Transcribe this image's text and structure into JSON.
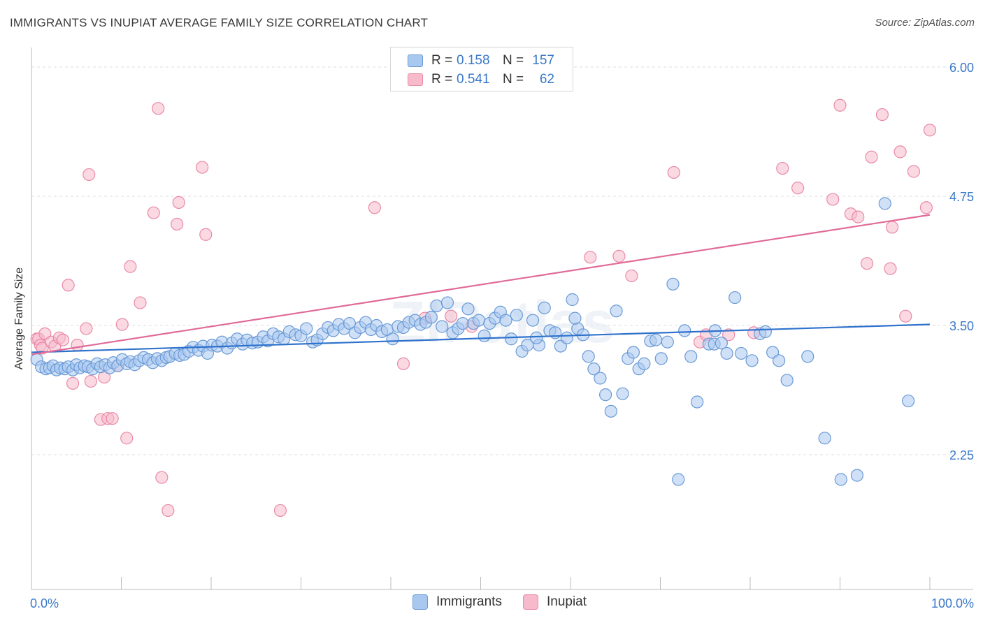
{
  "title": "IMMIGRANTS VS INUPIAT AVERAGE FAMILY SIZE CORRELATION CHART",
  "source": "Source: ZipAtlas.com",
  "colors": {
    "blue_fill": "#a9c8f0",
    "blue_stroke": "#6a9ad6",
    "blue_line": "#2f72cc",
    "pink_fill": "#f7b9cc",
    "pink_stroke": "#e98aa7",
    "pink_line": "#e06a97",
    "axis_text": "#3a78c9",
    "grid": "#dcdcdc"
  },
  "legend": {
    "row1": {
      "r_label": "R =",
      "r_value": "0.158",
      "n_label": "N =",
      "n_value": "157"
    },
    "row2": {
      "r_label": "R =",
      "r_value": "0.541",
      "n_label": "N =",
      "n_value": "62"
    }
  },
  "watermark": "ZIPatlas",
  "chart_data": {
    "type": "scatter",
    "ylabel": "Average Family Size",
    "xlabel": "",
    "x_tick_labels": [
      "0.0%",
      "100.0%"
    ],
    "y_tick_labels": [
      "6.00",
      "4.75",
      "3.50",
      "2.25"
    ],
    "y_ticks": [
      6.0,
      4.75,
      3.5,
      2.25
    ],
    "xlim": [
      0,
      100
    ],
    "ylim": [
      1.25,
      6.1
    ],
    "grid": true,
    "legend_position": "top-center",
    "series": [
      {
        "name": "Immigrants",
        "color": "#a9c8f0",
        "trend": {
          "x": [
            0,
            100
          ],
          "y": [
            3.24,
            3.51
          ]
        },
        "points": [
          [
            0.6,
            3.17
          ],
          [
            1.1,
            3.1
          ],
          [
            1.6,
            3.08
          ],
          [
            2.0,
            3.09
          ],
          [
            2.4,
            3.11
          ],
          [
            2.8,
            3.07
          ],
          [
            3.2,
            3.09
          ],
          [
            3.7,
            3.08
          ],
          [
            4.1,
            3.1
          ],
          [
            4.6,
            3.07
          ],
          [
            5.0,
            3.12
          ],
          [
            5.4,
            3.09
          ],
          [
            5.9,
            3.11
          ],
          [
            6.3,
            3.1
          ],
          [
            6.8,
            3.08
          ],
          [
            7.3,
            3.13
          ],
          [
            7.7,
            3.1
          ],
          [
            8.2,
            3.12
          ],
          [
            8.7,
            3.09
          ],
          [
            9.1,
            3.14
          ],
          [
            9.6,
            3.11
          ],
          [
            10.1,
            3.17
          ],
          [
            10.6,
            3.13
          ],
          [
            11.0,
            3.15
          ],
          [
            11.5,
            3.12
          ],
          [
            12.0,
            3.16
          ],
          [
            12.5,
            3.19
          ],
          [
            13.0,
            3.17
          ],
          [
            13.5,
            3.14
          ],
          [
            14.0,
            3.18
          ],
          [
            14.5,
            3.16
          ],
          [
            15.0,
            3.19
          ],
          [
            15.4,
            3.2
          ],
          [
            16.0,
            3.23
          ],
          [
            16.5,
            3.21
          ],
          [
            17.0,
            3.22
          ],
          [
            17.5,
            3.25
          ],
          [
            18.0,
            3.29
          ],
          [
            18.6,
            3.26
          ],
          [
            19.1,
            3.3
          ],
          [
            19.6,
            3.23
          ],
          [
            20.1,
            3.31
          ],
          [
            20.7,
            3.3
          ],
          [
            21.2,
            3.34
          ],
          [
            21.8,
            3.28
          ],
          [
            22.3,
            3.33
          ],
          [
            22.9,
            3.37
          ],
          [
            23.5,
            3.32
          ],
          [
            24.0,
            3.36
          ],
          [
            24.6,
            3.33
          ],
          [
            25.2,
            3.34
          ],
          [
            25.8,
            3.39
          ],
          [
            26.3,
            3.35
          ],
          [
            26.9,
            3.42
          ],
          [
            27.5,
            3.39
          ],
          [
            28.1,
            3.37
          ],
          [
            28.7,
            3.44
          ],
          [
            29.4,
            3.41
          ],
          [
            30.0,
            3.4
          ],
          [
            30.6,
            3.47
          ],
          [
            31.3,
            3.34
          ],
          [
            31.8,
            3.36
          ],
          [
            32.4,
            3.42
          ],
          [
            33.0,
            3.48
          ],
          [
            33.6,
            3.45
          ],
          [
            34.2,
            3.51
          ],
          [
            34.8,
            3.47
          ],
          [
            35.4,
            3.52
          ],
          [
            36.0,
            3.43
          ],
          [
            36.6,
            3.48
          ],
          [
            37.2,
            3.53
          ],
          [
            37.8,
            3.46
          ],
          [
            38.4,
            3.5
          ],
          [
            39.0,
            3.44
          ],
          [
            39.6,
            3.46
          ],
          [
            40.2,
            3.37
          ],
          [
            40.8,
            3.49
          ],
          [
            41.4,
            3.48
          ],
          [
            42.0,
            3.53
          ],
          [
            42.7,
            3.55
          ],
          [
            43.3,
            3.51
          ],
          [
            43.9,
            3.53
          ],
          [
            44.5,
            3.58
          ],
          [
            45.1,
            3.69
          ],
          [
            45.7,
            3.49
          ],
          [
            46.3,
            3.72
          ],
          [
            46.9,
            3.43
          ],
          [
            47.5,
            3.47
          ],
          [
            48.0,
            3.52
          ],
          [
            48.6,
            3.66
          ],
          [
            49.2,
            3.52
          ],
          [
            49.8,
            3.55
          ],
          [
            50.4,
            3.4
          ],
          [
            51.0,
            3.52
          ],
          [
            51.6,
            3.57
          ],
          [
            52.2,
            3.63
          ],
          [
            52.8,
            3.55
          ],
          [
            53.4,
            3.37
          ],
          [
            54.0,
            3.6
          ],
          [
            54.6,
            3.25
          ],
          [
            55.2,
            3.31
          ],
          [
            55.8,
            3.55
          ],
          [
            56.5,
            3.31
          ],
          [
            57.1,
            3.67
          ],
          [
            57.7,
            3.45
          ],
          [
            58.3,
            3.43
          ],
          [
            58.9,
            3.3
          ],
          [
            59.6,
            3.38
          ],
          [
            60.2,
            3.75
          ],
          [
            60.8,
            3.47
          ],
          [
            61.4,
            3.41
          ],
          [
            62.0,
            3.2
          ],
          [
            62.6,
            3.08
          ],
          [
            63.3,
            2.99
          ],
          [
            63.9,
            2.83
          ],
          [
            64.5,
            2.67
          ],
          [
            65.1,
            3.64
          ],
          [
            65.8,
            2.84
          ],
          [
            66.4,
            3.18
          ],
          [
            67.0,
            3.24
          ],
          [
            67.6,
            3.08
          ],
          [
            68.2,
            3.13
          ],
          [
            68.9,
            3.35
          ],
          [
            69.5,
            3.36
          ],
          [
            70.1,
            3.18
          ],
          [
            70.8,
            3.34
          ],
          [
            71.4,
            3.9
          ],
          [
            72.0,
            2.01
          ],
          [
            72.7,
            3.45
          ],
          [
            73.4,
            3.2
          ],
          [
            74.1,
            2.76
          ],
          [
            75.4,
            3.32
          ],
          [
            76.0,
            3.32
          ],
          [
            76.8,
            3.33
          ],
          [
            77.4,
            3.23
          ],
          [
            78.3,
            3.77
          ],
          [
            79.0,
            3.23
          ],
          [
            80.2,
            3.16
          ],
          [
            81.1,
            3.42
          ],
          [
            81.7,
            3.44
          ],
          [
            82.5,
            3.24
          ],
          [
            83.2,
            3.16
          ],
          [
            84.1,
            2.97
          ],
          [
            86.4,
            3.2
          ],
          [
            88.3,
            2.41
          ],
          [
            90.1,
            2.01
          ],
          [
            91.9,
            2.05
          ],
          [
            95.0,
            4.68
          ],
          [
            97.6,
            2.77
          ],
          [
            76.1,
            3.45
          ],
          [
            60.5,
            3.57
          ],
          [
            56.2,
            3.38
          ]
        ]
      },
      {
        "name": "Inupiat",
        "color": "#f7b9cc",
        "trend": {
          "x": [
            0,
            100
          ],
          "y": [
            3.22,
            4.57
          ]
        },
        "points": [
          [
            0.6,
            3.37
          ],
          [
            0.8,
            3.37
          ],
          [
            1.0,
            3.31
          ],
          [
            1.2,
            3.28
          ],
          [
            1.5,
            3.42
          ],
          [
            2.2,
            3.34
          ],
          [
            2.6,
            3.3
          ],
          [
            3.1,
            3.38
          ],
          [
            3.5,
            3.36
          ],
          [
            4.1,
            3.89
          ],
          [
            4.6,
            2.94
          ],
          [
            5.1,
            3.31
          ],
          [
            6.1,
            3.47
          ],
          [
            6.4,
            4.96
          ],
          [
            6.6,
            2.96
          ],
          [
            7.7,
            2.59
          ],
          [
            8.1,
            3.0
          ],
          [
            8.5,
            2.6
          ],
          [
            9.0,
            2.6
          ],
          [
            9.6,
            3.11
          ],
          [
            10.1,
            3.51
          ],
          [
            10.6,
            2.41
          ],
          [
            11.0,
            4.07
          ],
          [
            12.1,
            3.72
          ],
          [
            13.6,
            4.59
          ],
          [
            14.1,
            5.6
          ],
          [
            14.5,
            2.03
          ],
          [
            15.2,
            1.71
          ],
          [
            16.2,
            4.48
          ],
          [
            16.4,
            4.69
          ],
          [
            19.0,
            5.03
          ],
          [
            19.4,
            4.38
          ],
          [
            27.7,
            1.71
          ],
          [
            38.2,
            4.64
          ],
          [
            41.4,
            3.13
          ],
          [
            43.8,
            3.57
          ],
          [
            46.7,
            3.59
          ],
          [
            49.0,
            3.49
          ],
          [
            62.2,
            4.16
          ],
          [
            65.4,
            4.17
          ],
          [
            66.8,
            3.98
          ],
          [
            71.5,
            4.98
          ],
          [
            74.4,
            3.34
          ],
          [
            75.1,
            3.41
          ],
          [
            77.6,
            3.41
          ],
          [
            80.4,
            3.43
          ],
          [
            83.6,
            5.02
          ],
          [
            85.3,
            4.83
          ],
          [
            89.2,
            4.72
          ],
          [
            90.0,
            5.63
          ],
          [
            91.2,
            4.58
          ],
          [
            92.0,
            4.55
          ],
          [
            93.5,
            5.13
          ],
          [
            94.7,
            5.54
          ],
          [
            95.6,
            4.05
          ],
          [
            95.8,
            4.45
          ],
          [
            96.7,
            5.18
          ],
          [
            97.3,
            3.59
          ],
          [
            98.2,
            4.99
          ],
          [
            99.6,
            4.64
          ],
          [
            100.0,
            5.39
          ],
          [
            93.0,
            4.1
          ]
        ]
      }
    ]
  }
}
